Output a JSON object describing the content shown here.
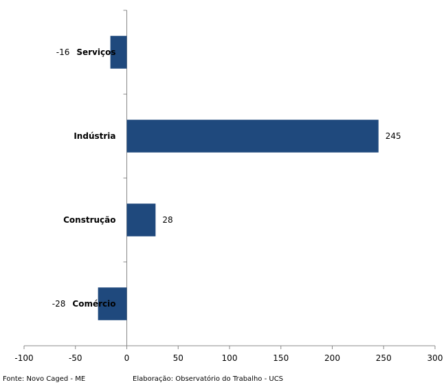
{
  "chart_data": {
    "type": "bar",
    "orientation": "horizontal",
    "categories": [
      "Serviços",
      "Indústria",
      "Construção",
      "Comércio"
    ],
    "values": [
      -16,
      245,
      28,
      -28
    ],
    "xlim": [
      -100,
      300
    ],
    "xticks": [
      -100,
      -50,
      0,
      50,
      100,
      150,
      200,
      250,
      300
    ],
    "bar_color": "#1f497d",
    "grid": false,
    "legend": "none",
    "title": "",
    "xlabel": "",
    "ylabel": ""
  },
  "footer": {
    "source": "Fonte: Novo Caged - ME",
    "credit": "Elaboração: Observatório do Trabalho - UCS"
  }
}
